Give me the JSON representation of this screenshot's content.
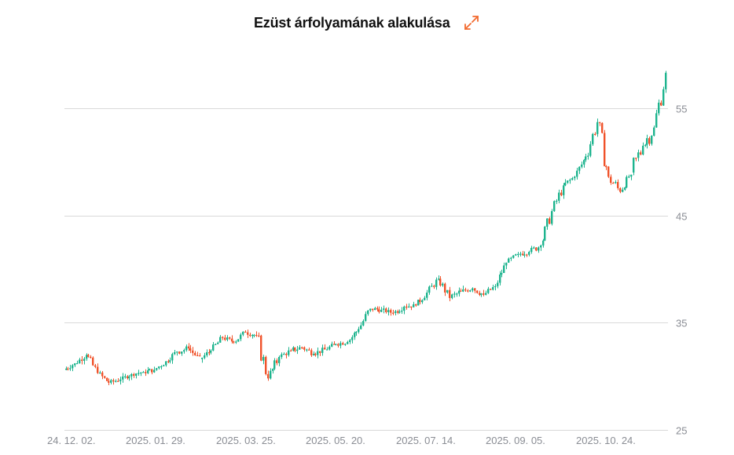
{
  "header": {
    "title": "Ezüst árfolyamának alakulása",
    "expand_icon": "expand-arrows-icon"
  },
  "colors": {
    "up": "#1db48e",
    "down": "#f0522a",
    "grid": "#d9d9d9",
    "axis_text": "#8a8d94",
    "accent": "#f26a2e"
  },
  "chart_data": {
    "type": "candlestick",
    "title": "Ezüst árfolyamának alakulása",
    "xlabel": "",
    "ylabel": "",
    "ylim": [
      25,
      59
    ],
    "yticks": [
      25,
      35,
      45,
      55
    ],
    "y_axis_position": "right",
    "grid": "horizontal",
    "legend": "none",
    "x_tick_labels": [
      "24. 12. 02.",
      "2025. 01. 29.",
      "2025. 03. 25.",
      "2025. 05. 20.",
      "2025. 07. 14.",
      "2025. 09. 05.",
      "2025. 10. 24."
    ],
    "x": [
      "2024-12-02",
      "2024-12-09",
      "2024-12-16",
      "2024-12-23",
      "2024-12-30",
      "2025-01-06",
      "2025-01-13",
      "2025-01-20",
      "2025-01-27",
      "2025-02-03",
      "2025-02-10",
      "2025-02-17",
      "2025-02-24",
      "2025-03-03",
      "2025-03-10",
      "2025-03-17",
      "2025-03-24",
      "2025-03-31",
      "2025-04-07",
      "2025-04-14",
      "2025-04-21",
      "2025-04-28",
      "2025-05-05",
      "2025-05-12",
      "2025-05-19",
      "2025-05-26",
      "2025-06-02",
      "2025-06-09",
      "2025-06-16",
      "2025-06-23",
      "2025-06-30",
      "2025-07-07",
      "2025-07-14",
      "2025-07-21",
      "2025-07-28",
      "2025-08-04",
      "2025-08-11",
      "2025-08-18",
      "2025-08-25",
      "2025-09-01",
      "2025-09-08",
      "2025-09-15",
      "2025-09-22",
      "2025-09-29",
      "2025-10-06",
      "2025-10-13",
      "2025-10-20",
      "2025-10-27",
      "2025-11-03",
      "2025-11-10",
      "2025-11-17",
      "2025-11-24",
      "2025-12-01"
    ],
    "series": [
      {
        "name": "open",
        "values": [
          30.6,
          31.2,
          32.0,
          30.3,
          29.4,
          29.7,
          30.2,
          30.4,
          30.6,
          31.4,
          32.3,
          32.6,
          31.6,
          32.4,
          33.6,
          33.2,
          34.1,
          33.8,
          29.8,
          31.8,
          32.4,
          32.7,
          32.1,
          32.5,
          33.0,
          33.2,
          34.4,
          36.3,
          36.2,
          35.9,
          36.5,
          36.6,
          37.8,
          39.1,
          37.3,
          37.9,
          38.2,
          37.6,
          38.4,
          40.6,
          41.4,
          41.6,
          42.2,
          45.4,
          47.8,
          48.6,
          50.5,
          53.7,
          48.6,
          47.2,
          49.0,
          51.5,
          53.2
        ]
      },
      {
        "name": "high",
        "values": [
          31.6,
          32.3,
          32.4,
          30.6,
          30.0,
          30.4,
          30.9,
          31.2,
          31.7,
          32.6,
          33.5,
          33.3,
          32.8,
          34.0,
          34.3,
          34.4,
          34.6,
          34.2,
          32.0,
          32.8,
          33.4,
          33.3,
          33.0,
          33.6,
          33.8,
          35.2,
          36.9,
          37.1,
          36.6,
          36.9,
          37.0,
          38.1,
          39.5,
          39.4,
          38.5,
          38.6,
          38.8,
          38.6,
          40.6,
          41.6,
          42.2,
          42.9,
          45.6,
          48.2,
          48.9,
          50.8,
          54.3,
          54.2,
          49.4,
          48.8,
          54.4,
          53.6,
          58.9
        ]
      },
      {
        "name": "low",
        "values": [
          30.2,
          30.8,
          29.9,
          28.9,
          28.9,
          29.3,
          29.8,
          29.9,
          30.1,
          31.0,
          31.8,
          31.9,
          31.0,
          32.1,
          33.0,
          32.7,
          33.3,
          29.1,
          29.0,
          31.4,
          31.7,
          31.8,
          31.6,
          32.2,
          32.6,
          33.0,
          34.2,
          35.8,
          35.5,
          35.4,
          36.0,
          36.4,
          37.6,
          37.0,
          36.2,
          37.2,
          37.1,
          37.0,
          38.2,
          40.3,
          40.9,
          41.1,
          42.0,
          45.1,
          47.4,
          48.2,
          50.2,
          48.0,
          45.6,
          46.9,
          48.4,
          48.7,
          52.8
        ]
      },
      {
        "name": "close",
        "values": [
          31.2,
          32.0,
          30.3,
          29.4,
          29.7,
          30.2,
          30.4,
          30.6,
          31.4,
          32.3,
          32.6,
          31.6,
          32.4,
          33.6,
          33.2,
          34.1,
          33.8,
          29.8,
          31.8,
          32.4,
          32.7,
          32.1,
          32.5,
          33.0,
          33.2,
          34.4,
          36.3,
          36.2,
          35.9,
          36.5,
          36.6,
          37.8,
          39.1,
          37.3,
          37.9,
          38.2,
          37.6,
          38.4,
          40.6,
          41.4,
          41.6,
          42.2,
          45.4,
          47.8,
          48.6,
          50.5,
          53.7,
          48.6,
          47.2,
          49.0,
          51.5,
          53.2,
          58.3
        ]
      }
    ]
  }
}
